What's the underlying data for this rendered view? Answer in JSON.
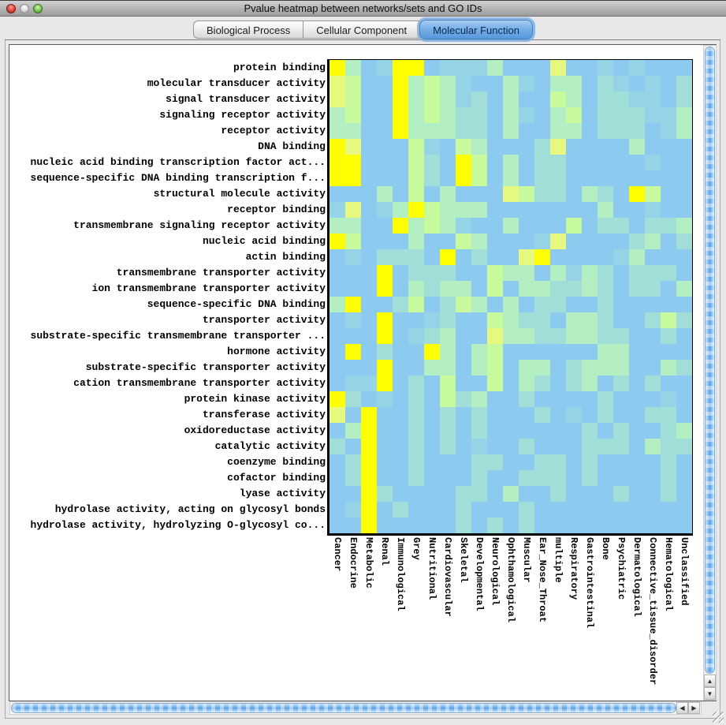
{
  "window": {
    "title": "Pvalue heatmap between networks/sets and GO IDs"
  },
  "tabs": [
    {
      "label": "Biological Process",
      "selected": false
    },
    {
      "label": "Cellular Component",
      "selected": false
    },
    {
      "label": "Molecular Function",
      "selected": true
    }
  ],
  "scrollbars": {
    "vertical": {
      "up_icon": "▲",
      "down_icon": "▼"
    },
    "horizontal": {
      "left_icon": "◀",
      "right_icon": "▶"
    }
  },
  "chart_data": {
    "type": "heatmap",
    "title": "Pvalue heatmap between networks/sets and GO IDs",
    "rows": [
      "protein binding",
      "molecular transducer activity",
      "signal transducer activity",
      "signaling receptor activity",
      "receptor activity",
      "DNA binding",
      "nucleic acid binding transcription factor act...",
      "sequence-specific DNA binding transcription f...",
      "structural molecule activity",
      "receptor binding",
      "transmembrane signaling receptor activity",
      "nucleic acid binding",
      "actin binding",
      "transmembrane transporter activity",
      "ion transmembrane transporter activity",
      "sequence-specific DNA binding",
      "transporter activity",
      "substrate-specific transmembrane transporter ...",
      "hormone activity",
      "substrate-specific transporter activity",
      "cation transmembrane transporter activity",
      "protein kinase activity",
      "transferase activity",
      "oxidoreductase activity",
      "catalytic activity",
      "coenzyme binding",
      "cofactor binding",
      "lyase activity",
      "hydrolase activity, acting on glycosyl bonds",
      "hydrolase activity, hydrolyzing O-glycosyl co..."
    ],
    "columns": [
      "Cancer",
      "Endocrine",
      "Metabolic",
      "Renal",
      "Immunological",
      "Grey",
      "Nutritional",
      "Cardiovascular",
      "Skeletal",
      "Developmental",
      "Neurological",
      "Ophthamological",
      "Muscular",
      "Ear_Nose_Throat",
      "multiple",
      "Respiratory",
      "Gastrointestinal",
      "Bone",
      "Psychiatric",
      "Dermatological",
      "Connective_tissue_disorder",
      "Hematological",
      "Unclassified"
    ],
    "palette": {
      "Y": "#ffff00",
      "y": "#e6f87d",
      "g": "#c6fa9d",
      "c": "#b3efc2",
      "t": "#a2ded8",
      "s": "#97d3e6",
      "B": "#8ccbef"
    },
    "palette_note": "Y=bright yellow (most significant) through yellow-green, mint, teal to B=base light blue (least significant)",
    "legend": "none shown",
    "grid": false,
    "cells": [
      "YcBsYYBssscBBByBBsBsBBB",
      "ygBBYcgcsBBcsBccBtsBsBt",
      "ygBBYcgcstBcBBgcBttssBt",
      "cgBBYcgcttBcsBcgBtttssc",
      "ccBBYcccttBcBBccBtttBsc",
      "YyBBBgsBgcBBBtyBBBBcBBB",
      "YYBBBgtBYgBcBttBBBBBsBB",
      "YYBBBgtBYgBcBttBBBBBBBB",
      "BBBcBgBcBBBygttBctBYgBB",
      "syBscYgcccBBBBBBBcBBsBB",
      "ccBBYcgcsBBcBBBgBttBttc",
      "YgBBBcBBgcBBBsyBBBBtcBt",
      "BsBtttBYBtBByYBBBBscBBB",
      "BBBYBtttBBgccBcsctBtttB",
      "BBBYBctccBgBccttctBttBc",
      "cYBBtgBtgcBcBttBBtBBBBB",
      "BsBYBBstBBgcttBcctBBtgt",
      "BBBYBstcBByccttccttBBtB",
      "BYBtBBYcBcgBBBBBBccBBBB",
      "BBBYBBccBcgBccBtcccBBct",
      "BssYBtBgBBgBctBtcBtBtBB",
      "YtBsBtBgtcBBtBBBBtBBBsB",
      "yBYBBtBtBtBBBtBsBtBBttB",
      "BcYBBtBtBtBBBBBBtBtBBtc",
      "tBYBBtBtBsBBtBBBtttBctt",
      "BtYBBtBBBttBBttBtBBBBtB",
      "BtYBBtBBBtBBtttBtBBBBtB",
      "BBYtBBBBttBcBBtBBBtBBtB",
      "BsYBtBBBtBBBtBBBBBBBBBB",
      "BBYBBBBBtBtBtBBBBBBBBBB"
    ]
  }
}
